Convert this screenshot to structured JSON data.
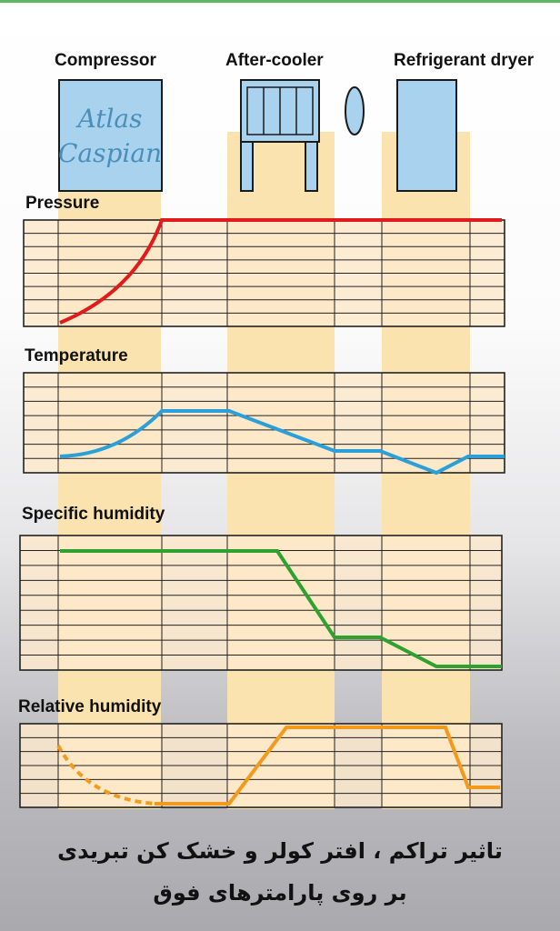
{
  "stages": [
    {
      "label": "Compressor"
    },
    {
      "label": "After-cooler"
    },
    {
      "label": "Refrigerant dryer"
    }
  ],
  "logo": {
    "line1": "Atlas",
    "line2": "Caspian"
  },
  "charts": [
    {
      "label": "Pressure",
      "color": "#e11b1b"
    },
    {
      "label": "Temperature",
      "color": "#2a9fd8"
    },
    {
      "label": "Specific humidity",
      "color": "#2ea12e"
    },
    {
      "label": "Relative humidity",
      "color": "#f39a1c"
    }
  ],
  "caption": {
    "line1": "تاثیر تراکم ، افتر کولر  و خشک کن تبریدی",
    "line2": "بر روی پارامترهای فوق"
  },
  "colors": {
    "column_fill": "#fbe3b0",
    "chart_fill": "#fde9cc",
    "grid": "#222222",
    "equipment_fill": "#a9d2ef"
  }
}
